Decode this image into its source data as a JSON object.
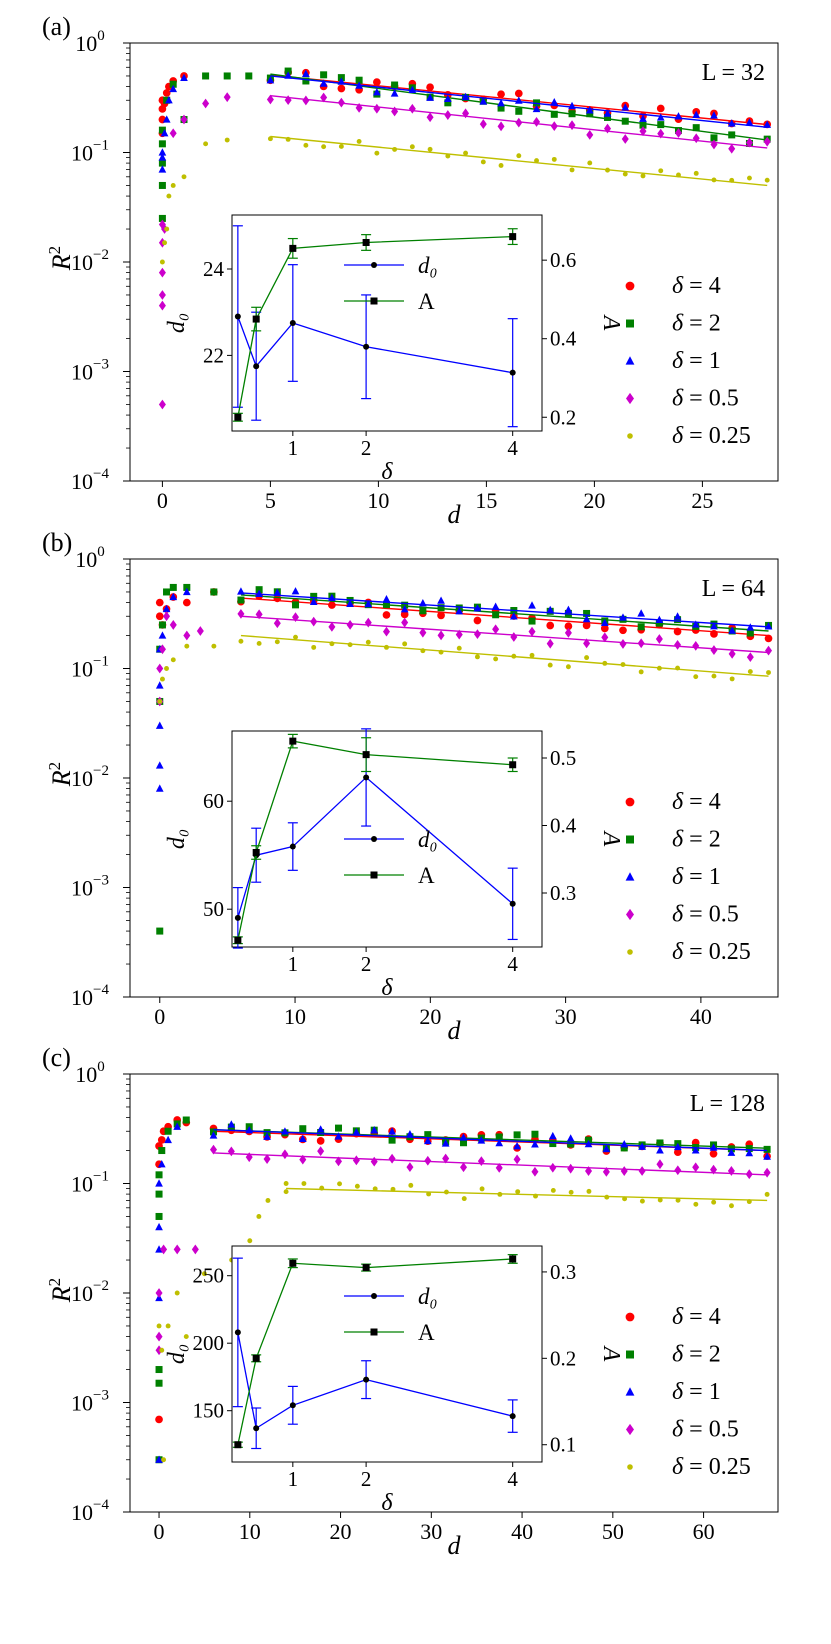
{
  "chart_data": [
    {
      "panel": "(a)",
      "type": "scatter",
      "annotation": "L = 32",
      "xlabel": "d",
      "ylabel": "R²",
      "xlim": [
        -1.5,
        28.5
      ],
      "ylim_log10": [
        -4,
        0
      ],
      "xticks": [
        0,
        5,
        10,
        15,
        20,
        25
      ],
      "yticks": [
        {
          "v": -4,
          "base": "10",
          "exp": "−4"
        },
        {
          "v": -3,
          "base": "10",
          "exp": "−3"
        },
        {
          "v": -2,
          "base": "10",
          "exp": "−2"
        },
        {
          "v": -1,
          "base": "10",
          "exp": "−1"
        },
        {
          "v": 0,
          "base": "10",
          "exp": "0"
        }
      ],
      "series": [
        {
          "name": "δ = 4",
          "color": "#ff0000",
          "marker": "circle",
          "early_x": [
            0,
            0,
            0,
            0,
            0.1,
            0.2,
            0.3,
            0.5,
            1
          ],
          "early_y": [
            0.3,
            0.2,
            0.25,
            0.15,
            0.28,
            0.35,
            0.4,
            0.45,
            0.5
          ],
          "fit_start": 5,
          "tail_end": 28,
          "tail_y0": 0.51,
          "tail_y1": 0.18
        },
        {
          "name": "δ = 2",
          "color": "#008000",
          "marker": "square",
          "early_x": [
            0,
            0,
            0,
            0,
            0,
            0.2,
            0.5,
            1,
            2,
            3,
            4
          ],
          "early_y": [
            0.05,
            0.08,
            0.12,
            0.16,
            0.025,
            0.3,
            0.42,
            0.2,
            0.5,
            0.5,
            0.5
          ],
          "fit_start": 5,
          "tail_end": 28,
          "tail_y0": 0.52,
          "tail_y1": 0.13
        },
        {
          "name": "δ = 1",
          "color": "#0000ff",
          "marker": "triangle",
          "early_x": [
            0,
            0,
            0,
            0.1,
            0.2,
            0.3,
            0.5,
            1
          ],
          "early_y": [
            0.07,
            0.09,
            0.1,
            0.15,
            0.2,
            0.3,
            0.38,
            0.48
          ],
          "fit_start": 5,
          "tail_end": 28,
          "tail_y0": 0.5,
          "tail_y1": 0.17
        },
        {
          "name": "δ = 0.5",
          "color": "#cc00cc",
          "marker": "diamond",
          "early_x": [
            0,
            0,
            0,
            0,
            0,
            0,
            0.1,
            0.5,
            1,
            2,
            3
          ],
          "early_y": [
            0.0005,
            0.004,
            0.005,
            0.008,
            0.015,
            0.022,
            0.02,
            0.15,
            0.2,
            0.28,
            0.32
          ],
          "fit_start": 5,
          "tail_end": 28,
          "tail_y0": 0.33,
          "tail_y1": 0.11
        },
        {
          "name": "δ = 0.25",
          "color": "#bfbf00",
          "marker": "dot",
          "early_x": [
            0,
            0.1,
            0.2,
            0.3,
            0.5,
            1,
            2,
            3
          ],
          "early_y": [
            0.01,
            0.015,
            0.02,
            0.04,
            0.05,
            0.06,
            0.12,
            0.13
          ],
          "fit_start": 5,
          "tail_end": 28,
          "tail_y0": 0.14,
          "tail_y1": 0.05
        }
      ],
      "inset": {
        "xlabel": "δ",
        "ylabel_left": "d₀",
        "ylabel_right": "A",
        "xlim": [
          0.17,
          4.4
        ],
        "left_ylim": [
          20.25,
          25.25
        ],
        "right_ylim": [
          0.165,
          0.715
        ],
        "xticks": [
          1,
          2,
          4
        ],
        "left_yticks": [
          22,
          24
        ],
        "right_yticks": [
          0.2,
          0.4,
          0.6
        ],
        "legend": {
          "series1": "d₀",
          "series2": "A"
        },
        "x": [
          0.25,
          0.5,
          1,
          2,
          4
        ],
        "d0": [
          22.9,
          21.75,
          22.75,
          22.2,
          21.6
        ],
        "d0_err": [
          2.1,
          1.25,
          1.35,
          1.2,
          1.25
        ],
        "A": [
          0.2,
          0.45,
          0.63,
          0.645,
          0.66
        ],
        "A_err": [
          0.01,
          0.03,
          0.025,
          0.02,
          0.02
        ]
      }
    },
    {
      "panel": "(b)",
      "type": "scatter",
      "annotation": "L = 64",
      "xlabel": "d",
      "ylabel": "R²",
      "xlim": [
        -2.2,
        45.7
      ],
      "ylim_log10": [
        -4,
        0
      ],
      "xticks": [
        0,
        10,
        20,
        30,
        40
      ],
      "yticks": [
        {
          "v": -4,
          "base": "10",
          "exp": "−4"
        },
        {
          "v": -3,
          "base": "10",
          "exp": "−3"
        },
        {
          "v": -2,
          "base": "10",
          "exp": "−2"
        },
        {
          "v": -1,
          "base": "10",
          "exp": "−1"
        },
        {
          "v": 0,
          "base": "10",
          "exp": "0"
        }
      ],
      "series": [
        {
          "name": "δ = 4",
          "color": "#ff0000",
          "marker": "circle",
          "early_x": [
            0,
            0,
            0.2,
            0.5,
            1,
            2,
            4
          ],
          "early_y": [
            0.4,
            0.3,
            0.25,
            0.35,
            0.45,
            0.4,
            0.5
          ],
          "fit_start": 6,
          "tail_end": 45,
          "tail_y0": 0.44,
          "tail_y1": 0.2
        },
        {
          "name": "δ = 2",
          "color": "#008000",
          "marker": "square",
          "early_x": [
            0,
            0,
            0,
            0.2,
            0.5,
            1,
            2,
            4
          ],
          "early_y": [
            0.0004,
            0.05,
            0.15,
            0.25,
            0.5,
            0.55,
            0.55,
            0.5
          ],
          "fit_start": 6,
          "tail_end": 45,
          "tail_y0": 0.47,
          "tail_y1": 0.22
        },
        {
          "name": "δ = 1",
          "color": "#0000ff",
          "marker": "triangle",
          "early_x": [
            0,
            0,
            0,
            0,
            0,
            0.2,
            0.5,
            1,
            2
          ],
          "early_y": [
            0.008,
            0.013,
            0.03,
            0.07,
            0.15,
            0.2,
            0.35,
            0.45,
            0.5
          ],
          "fit_start": 6,
          "tail_end": 45,
          "tail_y0": 0.49,
          "tail_y1": 0.24
        },
        {
          "name": "δ = 0.5",
          "color": "#cc00cc",
          "marker": "diamond",
          "early_x": [
            0,
            0,
            0.2,
            0.5,
            1,
            2,
            3
          ],
          "early_y": [
            0.05,
            0.1,
            0.15,
            0.3,
            0.25,
            0.2,
            0.22
          ],
          "fit_start": 6,
          "tail_end": 45,
          "tail_y0": 0.3,
          "tail_y1": 0.14
        },
        {
          "name": "δ = 0.25",
          "color": "#bfbf00",
          "marker": "dot",
          "early_x": [
            0,
            0.2,
            0.5,
            1,
            2,
            4
          ],
          "early_y": [
            0.05,
            0.08,
            0.1,
            0.12,
            0.16,
            0.16
          ],
          "fit_start": 6,
          "tail_end": 45,
          "tail_y0": 0.2,
          "tail_y1": 0.085
        }
      ],
      "inset": {
        "xlabel": "δ",
        "ylabel_left": "d₀",
        "ylabel_right": "A",
        "xlim": [
          0.17,
          4.4
        ],
        "left_ylim": [
          46.5,
          66.5
        ],
        "right_ylim": [
          0.22,
          0.54
        ],
        "xticks": [
          1,
          2,
          4
        ],
        "left_yticks": [
          50,
          60
        ],
        "right_yticks": [
          0.3,
          0.4,
          0.5
        ],
        "legend": {
          "series1": "d₀",
          "series2": "A"
        },
        "x": [
          0.25,
          0.5,
          1,
          2,
          4
        ],
        "d0": [
          49.2,
          55,
          55.8,
          62.2,
          50.5
        ],
        "d0_err": [
          2.8,
          2.5,
          2.2,
          4.5,
          3.3
        ],
        "A": [
          0.23,
          0.36,
          0.525,
          0.505,
          0.49
        ],
        "A_err": [
          0.005,
          0.01,
          0.01,
          0.025,
          0.01
        ]
      }
    },
    {
      "panel": "(c)",
      "type": "scatter",
      "annotation": "L = 128",
      "xlabel": "d",
      "ylabel": "R²",
      "xlim": [
        -3.2,
        68.2
      ],
      "ylim_log10": [
        -4,
        0
      ],
      "xticks": [
        0,
        10,
        20,
        30,
        40,
        50,
        60
      ],
      "yticks": [
        {
          "v": -4,
          "base": "10",
          "exp": "−4"
        },
        {
          "v": -3,
          "base": "10",
          "exp": "−3"
        },
        {
          "v": -2,
          "base": "10",
          "exp": "−2"
        },
        {
          "v": -1,
          "base": "10",
          "exp": "−1"
        },
        {
          "v": 0,
          "base": "10",
          "exp": "0"
        }
      ],
      "series": [
        {
          "name": "δ = 4",
          "color": "#ff0000",
          "marker": "circle",
          "early_x": [
            0,
            0,
            0,
            0.3,
            0.5,
            1,
            2,
            3
          ],
          "early_y": [
            0.0007,
            0.15,
            0.22,
            0.25,
            0.3,
            0.33,
            0.38,
            0.36
          ],
          "fit_start": 6,
          "tail_end": 67,
          "tail_y0": 0.3,
          "tail_y1": 0.2
        },
        {
          "name": "δ = 2",
          "color": "#008000",
          "marker": "square",
          "early_x": [
            0,
            0,
            0,
            0,
            0,
            0,
            0.3,
            1,
            2,
            3
          ],
          "early_y": [
            0.0003,
            0.0015,
            0.002,
            0.05,
            0.08,
            0.12,
            0.2,
            0.3,
            0.35,
            0.38
          ],
          "fit_start": 6,
          "tail_end": 67,
          "tail_y0": 0.31,
          "tail_y1": 0.21
        },
        {
          "name": "δ = 1",
          "color": "#0000ff",
          "marker": "triangle",
          "early_x": [
            0,
            0,
            0,
            0,
            0,
            0.3,
            1,
            2
          ],
          "early_y": [
            0.0003,
            0.009,
            0.025,
            0.04,
            0.1,
            0.15,
            0.25,
            0.33
          ],
          "fit_start": 6,
          "tail_end": 67,
          "tail_y0": 0.31,
          "tail_y1": 0.2
        },
        {
          "name": "δ = 0.5",
          "color": "#cc00cc",
          "marker": "diamond",
          "early_x": [
            0,
            0,
            0,
            0.5,
            2,
            4
          ],
          "early_y": [
            0.003,
            0.004,
            0.01,
            0.025,
            0.025,
            0.025
          ],
          "fit_start": 6,
          "tail_end": 67,
          "tail_y0": 0.19,
          "tail_y1": 0.12
        },
        {
          "name": "δ = 0.25",
          "color": "#bfbf00",
          "marker": "dot",
          "early_x": [
            0,
            0.3,
            0.5,
            1,
            2,
            3,
            5,
            8,
            10,
            11,
            12,
            14
          ],
          "early_y": [
            0.005,
            0.003,
            0.0003,
            0.005,
            0.01,
            0.004,
            0.015,
            0.02,
            0.03,
            0.05,
            0.07,
            0.1
          ],
          "fit_start": 14,
          "tail_end": 67,
          "tail_y0": 0.09,
          "tail_y1": 0.07
        }
      ],
      "inset": {
        "xlabel": "δ",
        "ylabel_left": "d₀",
        "ylabel_right": "A",
        "xlim": [
          0.17,
          4.4
        ],
        "left_ylim": [
          112,
          272
        ],
        "right_ylim": [
          0.08,
          0.33
        ],
        "xticks": [
          1,
          2,
          4
        ],
        "left_yticks": [
          150,
          200,
          250
        ],
        "right_yticks": [
          0.1,
          0.2,
          0.3
        ],
        "legend": {
          "series1": "d₀",
          "series2": "A"
        },
        "x": [
          0.25,
          0.5,
          1,
          2,
          4
        ],
        "d0": [
          208,
          137,
          154,
          173,
          146
        ],
        "d0_err": [
          55,
          15,
          14,
          14,
          12
        ],
        "A": [
          0.1,
          0.2,
          0.31,
          0.305,
          0.315
        ],
        "A_err": [
          0.003,
          0.004,
          0.005,
          0.004,
          0.005
        ]
      }
    }
  ]
}
